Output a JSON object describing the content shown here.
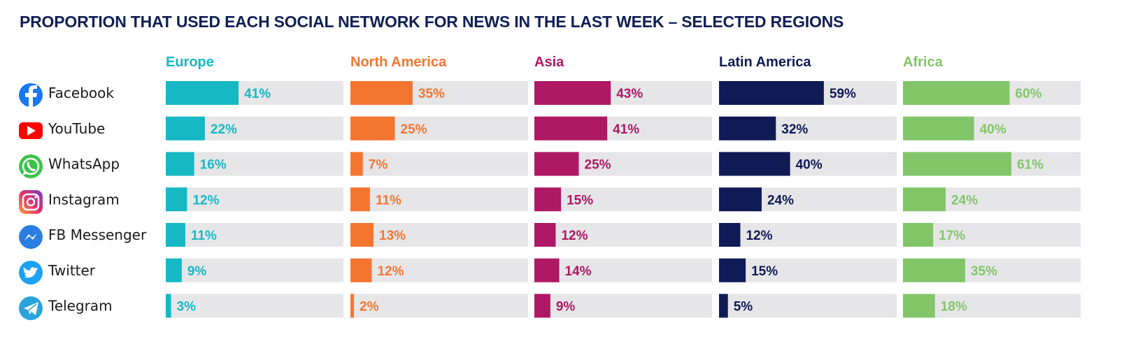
{
  "chart_data": {
    "type": "bar",
    "orientation": "horizontal",
    "title": "PROPORTION THAT USED EACH SOCIAL NETWORK FOR NEWS IN THE LAST WEEK – SELECTED REGIONS",
    "categories": [
      "Facebook",
      "YouTube",
      "WhatsApp",
      "Instagram",
      "FB Messenger",
      "Twitter",
      "Telegram"
    ],
    "category_icons": [
      "facebook-icon",
      "youtube-icon",
      "whatsapp-icon",
      "instagram-icon",
      "messenger-icon",
      "twitter-icon",
      "telegram-icon"
    ],
    "xlim": [
      0,
      100
    ],
    "value_suffix": "%",
    "series": [
      {
        "name": "Europe",
        "color": "#16b8c4",
        "values": [
          41,
          22,
          16,
          12,
          11,
          9,
          3
        ]
      },
      {
        "name": "North America",
        "color": "#f47530",
        "values": [
          35,
          25,
          7,
          11,
          13,
          12,
          2
        ]
      },
      {
        "name": "Asia",
        "color": "#ae1865",
        "values": [
          43,
          41,
          25,
          15,
          12,
          14,
          9
        ]
      },
      {
        "name": "Latin America",
        "color": "#0f1b55",
        "values": [
          59,
          32,
          40,
          24,
          12,
          15,
          5
        ]
      },
      {
        "name": "Africa",
        "color": "#82c569",
        "values": [
          60,
          40,
          61,
          24,
          17,
          35,
          18
        ]
      }
    ],
    "track_color": "#e6e6e8",
    "title_color": "#0f1f55"
  }
}
